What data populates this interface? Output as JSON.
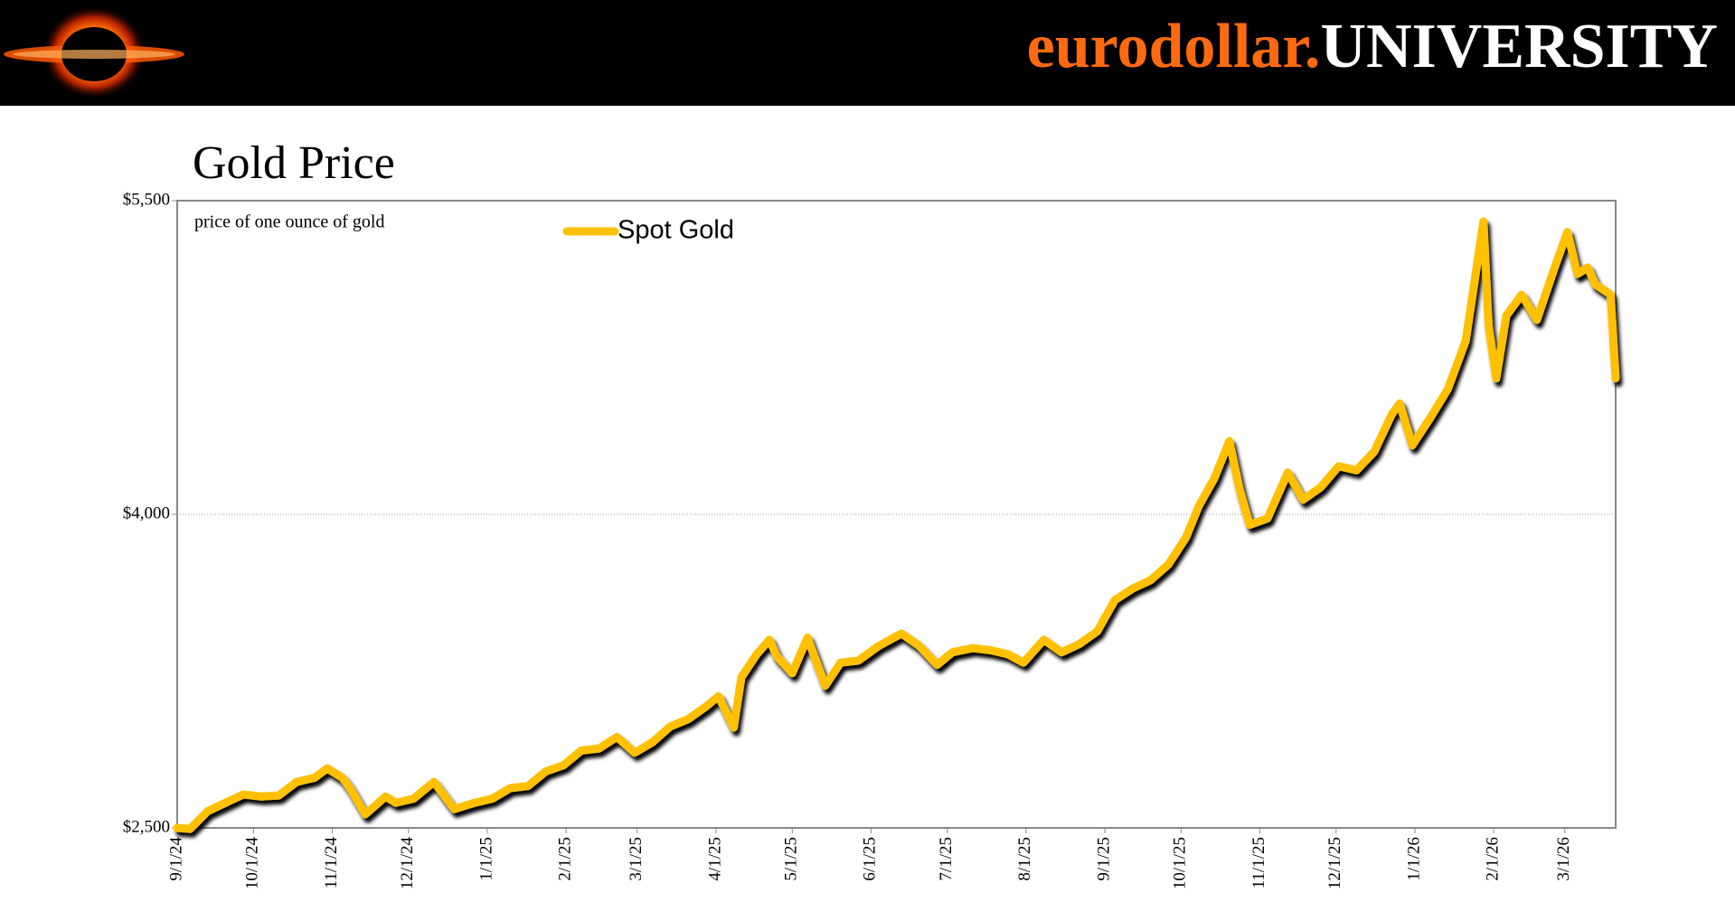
{
  "header": {
    "brand": "eurodollar.",
    "brand_suffix": "UNIVERSITY"
  },
  "chart_data": {
    "type": "line",
    "title": "Gold Price",
    "subtitle": "price of one ounce of gold",
    "x": [
      "2024-09-01",
      "2024-09-06",
      "2024-09-13",
      "2024-09-20",
      "2024-09-27",
      "2024-10-04",
      "2024-10-11",
      "2024-10-18",
      "2024-10-25",
      "2024-10-30",
      "2024-11-05",
      "2024-11-08",
      "2024-11-14",
      "2024-11-22",
      "2024-11-26",
      "2024-12-03",
      "2024-12-11",
      "2024-12-19",
      "2024-12-27",
      "2025-01-03",
      "2025-01-10",
      "2025-01-17",
      "2025-01-24",
      "2025-01-31",
      "2025-02-07",
      "2025-02-14",
      "2025-02-21",
      "2025-02-28",
      "2025-03-07",
      "2025-03-14",
      "2025-03-21",
      "2025-03-28",
      "2025-04-02",
      "2025-04-08",
      "2025-04-11",
      "2025-04-17",
      "2025-04-22",
      "2025-04-25",
      "2025-05-01",
      "2025-05-07",
      "2025-05-14",
      "2025-05-20",
      "2025-05-27",
      "2025-06-04",
      "2025-06-13",
      "2025-06-20",
      "2025-06-27",
      "2025-07-03",
      "2025-07-11",
      "2025-07-18",
      "2025-07-25",
      "2025-07-31",
      "2025-08-08",
      "2025-08-15",
      "2025-08-22",
      "2025-08-29",
      "2025-09-05",
      "2025-09-12",
      "2025-09-19",
      "2025-09-26",
      "2025-10-03",
      "2025-10-08",
      "2025-10-14",
      "2025-10-20",
      "2025-10-24",
      "2025-10-28",
      "2025-11-04",
      "2025-11-12",
      "2025-11-18",
      "2025-11-25",
      "2025-12-02",
      "2025-12-09",
      "2025-12-16",
      "2025-12-23",
      "2025-12-26",
      "2025-12-31",
      "2026-01-07",
      "2026-01-14",
      "2026-01-21",
      "2026-01-28",
      "2026-01-30",
      "2026-02-02",
      "2026-02-06",
      "2026-02-12",
      "2026-02-18",
      "2026-02-25",
      "2026-03-02",
      "2026-03-06",
      "2026-03-10",
      "2026-03-13",
      "2026-03-19",
      "2026-03-21"
    ],
    "series": [
      {
        "name": "Spot Gold",
        "color": "#ffc000",
        "values": [
          2500,
          2495,
          2580,
          2620,
          2660,
          2650,
          2655,
          2720,
          2740,
          2785,
          2740,
          2690,
          2565,
          2650,
          2620,
          2640,
          2720,
          2590,
          2620,
          2640,
          2690,
          2700,
          2770,
          2800,
          2870,
          2880,
          2935,
          2860,
          2910,
          2985,
          3020,
          3080,
          3130,
          2980,
          3220,
          3330,
          3400,
          3320,
          3240,
          3410,
          3180,
          3290,
          3300,
          3370,
          3430,
          3370,
          3280,
          3340,
          3360,
          3350,
          3330,
          3290,
          3400,
          3340,
          3380,
          3440,
          3590,
          3645,
          3685,
          3760,
          3890,
          4040,
          4170,
          4350,
          4120,
          3950,
          3980,
          4200,
          4070,
          4130,
          4230,
          4210,
          4300,
          4480,
          4530,
          4330,
          4460,
          4600,
          4830,
          5400,
          4900,
          4650,
          4950,
          5050,
          4930,
          5180,
          5350,
          5150,
          5180,
          5100,
          5050,
          4650
        ]
      }
    ],
    "xlim": [
      "2024-09-01",
      "2026-03-21"
    ],
    "xticks": [
      {
        "value": "2024-09-01",
        "label": "9/1/24"
      },
      {
        "value": "2024-10-01",
        "label": "10/1/24"
      },
      {
        "value": "2024-11-01",
        "label": "11/1/24"
      },
      {
        "value": "2024-12-01",
        "label": "12/1/24"
      },
      {
        "value": "2025-01-01",
        "label": "1/1/25"
      },
      {
        "value": "2025-02-01",
        "label": "2/1/25"
      },
      {
        "value": "2025-03-01",
        "label": "3/1/25"
      },
      {
        "value": "2025-04-01",
        "label": "4/1/25"
      },
      {
        "value": "2025-05-01",
        "label": "5/1/25"
      },
      {
        "value": "2025-06-01",
        "label": "6/1/25"
      },
      {
        "value": "2025-07-01",
        "label": "7/1/25"
      },
      {
        "value": "2025-08-01",
        "label": "8/1/25"
      },
      {
        "value": "2025-09-01",
        "label": "9/1/25"
      },
      {
        "value": "2025-10-01",
        "label": "10/1/25"
      },
      {
        "value": "2025-11-01",
        "label": "11/1/25"
      },
      {
        "value": "2025-12-01",
        "label": "12/1/25"
      },
      {
        "value": "2026-01-01",
        "label": "1/1/26"
      },
      {
        "value": "2026-02-01",
        "label": "2/1/26"
      },
      {
        "value": "2026-03-01",
        "label": "3/1/26"
      }
    ],
    "ylim": [
      2500,
      5500
    ],
    "yticks": [
      {
        "value": 2500,
        "label": "$2,500"
      },
      {
        "value": 4000,
        "label": "$4,000"
      },
      {
        "value": 5500,
        "label": "$5,500"
      }
    ],
    "grid": true,
    "legend": "top"
  }
}
